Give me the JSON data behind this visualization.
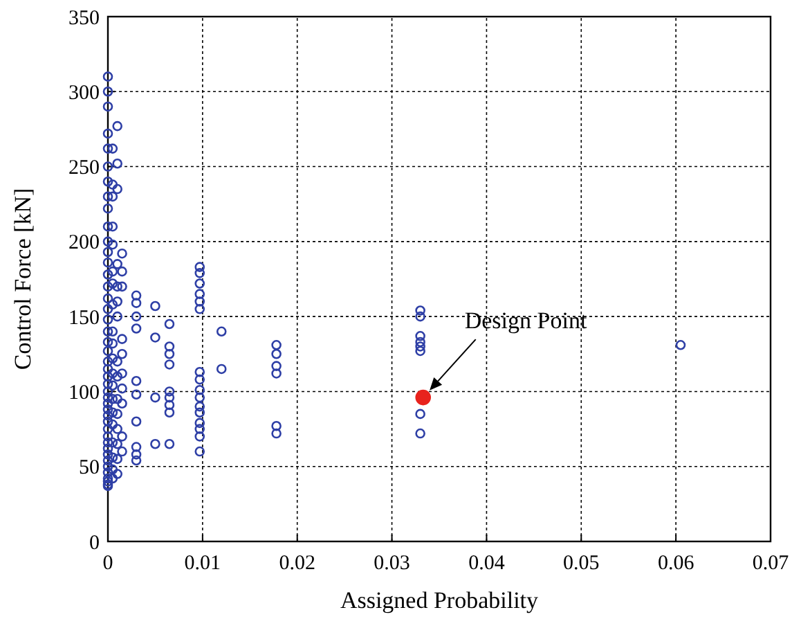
{
  "chart_data": {
    "type": "scatter",
    "xlabel": "Assigned Probability",
    "ylabel": "Control Force [kN]",
    "xlim": [
      0,
      0.07
    ],
    "ylim": [
      0,
      350
    ],
    "xticks": [
      0,
      0.01,
      0.02,
      0.03,
      0.04,
      0.05,
      0.06,
      0.07
    ],
    "yticks": [
      0,
      50,
      100,
      150,
      200,
      250,
      300,
      350
    ],
    "grid": true,
    "marker": "circle",
    "series": [
      {
        "color": "#2e3fa6",
        "x": [
          0,
          0,
          0,
          0,
          0,
          0,
          0,
          0,
          0,
          0,
          0,
          0,
          0,
          0,
          0,
          0,
          0,
          0,
          0,
          0,
          0,
          0,
          0,
          0,
          0,
          0,
          0,
          0,
          0,
          0,
          0,
          0,
          0,
          0,
          0,
          0,
          0,
          0,
          0,
          0,
          0,
          0,
          0,
          0.0005,
          0.0005,
          0.0005,
          0.0005,
          0.0005,
          0.0005,
          0.0005,
          0.0005,
          0.0005,
          0.0005,
          0.0005,
          0.0005,
          0.0005,
          0.0005,
          0.0005,
          0.0005,
          0.0005,
          0.0005,
          0.0005,
          0.0005,
          0.001,
          0.001,
          0.001,
          0.001,
          0.001,
          0.001,
          0.001,
          0.001,
          0.001,
          0.001,
          0.001,
          0.001,
          0.001,
          0.001,
          0.001,
          0.0015,
          0.0015,
          0.0015,
          0.0015,
          0.0015,
          0.0015,
          0.0015,
          0.0015,
          0.0015,
          0.0015,
          0.003,
          0.003,
          0.003,
          0.003,
          0.003,
          0.003,
          0.003,
          0.003,
          0.003,
          0.003,
          0.005,
          0.005,
          0.005,
          0.005,
          0.0065,
          0.0065,
          0.0065,
          0.0065,
          0.0065,
          0.0065,
          0.0065,
          0.0065,
          0.0065,
          0.0097,
          0.0097,
          0.0097,
          0.0097,
          0.0097,
          0.0097,
          0.0097,
          0.0097,
          0.0097,
          0.0097,
          0.0097,
          0.0097,
          0.0097,
          0.0097,
          0.0097,
          0.0097,
          0.012,
          0.012,
          0.0178,
          0.0178,
          0.0178,
          0.0178,
          0.0178,
          0.0178,
          0.033,
          0.033,
          0.033,
          0.033,
          0.033,
          0.033,
          0.033,
          0.033,
          0.0605
        ],
        "values": [
          310,
          300,
          290,
          272,
          262,
          250,
          240,
          230,
          222,
          210,
          200,
          193,
          186,
          178,
          170,
          162,
          155,
          148,
          140,
          133,
          127,
          120,
          115,
          110,
          105,
          100,
          96,
          92,
          88,
          84,
          80,
          75,
          70,
          66,
          62,
          58,
          54,
          50,
          46,
          42,
          40,
          38,
          37,
          262,
          238,
          230,
          210,
          198,
          180,
          172,
          158,
          140,
          132,
          122,
          112,
          104,
          95,
          86,
          78,
          66,
          56,
          48,
          42,
          277,
          252,
          235,
          185,
          170,
          160,
          150,
          120,
          110,
          95,
          85,
          75,
          65,
          55,
          45,
          192,
          180,
          170,
          135,
          125,
          112,
          102,
          92,
          70,
          60,
          164,
          159,
          150,
          142,
          107,
          98,
          80,
          63,
          58,
          54,
          157,
          136,
          96,
          65,
          145,
          130,
          125,
          118,
          100,
          96,
          91,
          86,
          65,
          183,
          179,
          172,
          165,
          160,
          155,
          113,
          108,
          101,
          96,
          90,
          86,
          79,
          75,
          70,
          60,
          140,
          115,
          131,
          125,
          117,
          112,
          77,
          72,
          154,
          150,
          137,
          133,
          130,
          127,
          85,
          72,
          131
        ]
      },
      {
        "color": "#e8231d",
        "x": [
          0.0333
        ],
        "values": [
          96
        ]
      }
    ],
    "annotations": [
      "Design Point"
    ]
  }
}
